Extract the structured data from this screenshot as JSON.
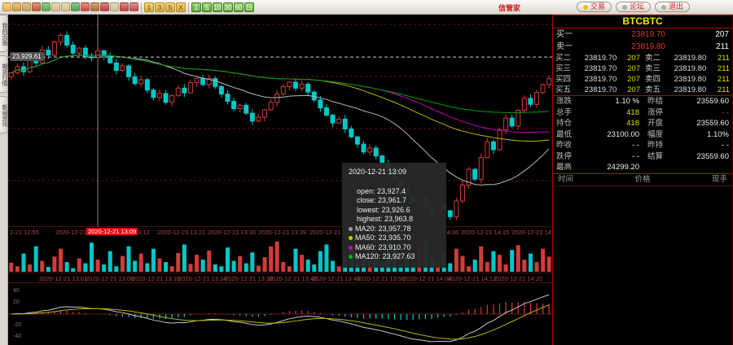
{
  "toolbar": {
    "brand": "信管家",
    "tool_icons": [
      {
        "name": "open-folder-icon",
        "color": "#e9b44a"
      },
      {
        "name": "home-icon",
        "color": "#d89a3e"
      },
      {
        "name": "notebook-icon",
        "color": "#c9a050"
      },
      {
        "name": "wallet-icon",
        "color": "#c05a35"
      },
      {
        "name": "refresh-icon",
        "color": "#5aa84a"
      },
      {
        "name": "zoom-out-icon",
        "color": "#d8c08a"
      },
      {
        "name": "zoom-in-icon",
        "color": "#d8c08a"
      },
      {
        "name": "blocks-icon",
        "color": "#4f9e4f"
      },
      {
        "name": "pencil-icon",
        "color": "#cc4a3a"
      },
      {
        "name": "brush-icon",
        "color": "#b06a30"
      },
      {
        "name": "funnel-icon",
        "color": "#c03a3a"
      },
      {
        "name": "calculator-icon",
        "color": "#cfc39a"
      },
      {
        "name": "trendline-icon",
        "color": "#c43b3b"
      },
      {
        "name": "bar-chart-icon",
        "color": "#c44a4a"
      }
    ],
    "period_yellow": [
      "1",
      "3",
      "5",
      "X"
    ],
    "period_green": [
      "1",
      "5",
      "10",
      "30",
      "60",
      "日"
    ],
    "right_tabs": [
      {
        "label": "交易",
        "icon": "lightning-icon",
        "dot": "#f0c11c"
      },
      {
        "label": "论坛",
        "icon": "chat-icon",
        "dot": "#a8b0a8"
      },
      {
        "label": "退出",
        "icon": "chat-icon",
        "dot": "#a8b0a8"
      }
    ]
  },
  "sidebar": {
    "tabs": [
      "我的页面",
      "期货行情",
      "新闻资讯"
    ]
  },
  "chart": {
    "crosshair_price_label": "23,929.61",
    "tooltip": {
      "datetime": "2020-12-21 13:09",
      "rows": [
        {
          "label": "open",
          "value": "23,927.4"
        },
        {
          "label": "close",
          "value": "23,961.7"
        },
        {
          "label": "lowest",
          "value": "23,926.6"
        },
        {
          "label": "highest",
          "value": "23,963.8"
        }
      ],
      "mas": [
        {
          "label": "MA20",
          "value": "23,957.78",
          "color": "#9a9a9a"
        },
        {
          "label": "MA50",
          "value": "23,935.70",
          "color": "#cccc00"
        },
        {
          "label": "MA60",
          "value": "23,910.70",
          "color": "#cc00cc"
        },
        {
          "label": "MA120",
          "value": "23,927.63",
          "color": "#00bb00"
        }
      ]
    }
  },
  "chart_data": {
    "type": "candlestick",
    "symbol": "BTCBTC",
    "interval_minutes": 1,
    "visible_range": [
      "2020-12-21 12:55",
      "2020-12-21 14:24"
    ],
    "price_axis_range": [
      23080,
      24120
    ],
    "first_open": 23830,
    "closes": [
      23850,
      23880,
      23855,
      23920,
      23900,
      23965,
      23940,
      24005,
      24040,
      23990,
      23950,
      23975,
      23930,
      23927,
      23962,
      23935,
      23900,
      23862,
      23885,
      23830,
      23795,
      23815,
      23762,
      23725,
      23745,
      23700,
      23735,
      23772,
      23748,
      23800,
      23822,
      23790,
      23820,
      23780,
      23742,
      23705,
      23668,
      23685,
      23645,
      23605,
      23625,
      23662,
      23700,
      23742,
      23780,
      23802,
      23772,
      23792,
      23752,
      23712,
      23672,
      23635,
      23595,
      23615,
      23565,
      23525,
      23488,
      23448,
      23468,
      23428,
      23388,
      23348,
      23308,
      23268,
      23228,
      23190,
      23215,
      23168,
      23128,
      23185,
      23150,
      23120,
      23200,
      23280,
      23360,
      23310,
      23420,
      23500,
      23460,
      23560,
      23620,
      23580,
      23660,
      23720,
      23690,
      23750,
      23790,
      23820
    ],
    "volumes": [
      150,
      90,
      300,
      120,
      420,
      180,
      80,
      250,
      380,
      160,
      60,
      220,
      140,
      480,
      200,
      120,
      340,
      90,
      260,
      420,
      180,
      300,
      140,
      380,
      220,
      160,
      90,
      310,
      450,
      130,
      280,
      200,
      350,
      120,
      90,
      400,
      180,
      260,
      140,
      320,
      100,
      240,
      420,
      500,
      160,
      90,
      380,
      280,
      200,
      120,
      340,
      450,
      180,
      90,
      260,
      380,
      140,
      300,
      420,
      200,
      160,
      480,
      350,
      120,
      280,
      90,
      400,
      520,
      240,
      180,
      300,
      140,
      380,
      260,
      90,
      200,
      420,
      160,
      340,
      280,
      120,
      360,
      440,
      200,
      300,
      160,
      380,
      250
    ],
    "volume_axis_max": 550,
    "overlays": [
      {
        "name": "MA20",
        "period": 20,
        "color": "#b8b8b8"
      },
      {
        "name": "MA50",
        "period": 50,
        "color": "#bcbc00"
      },
      {
        "name": "MA60",
        "period": 60,
        "color": "#bc00bc"
      },
      {
        "name": "MA120",
        "period": 120,
        "color": "#00a000"
      }
    ],
    "sub_indicator": {
      "type": "macd",
      "fast": 12,
      "slow": 26,
      "signal": 9,
      "colors": {
        "diff": "#c8c8c8",
        "dea": "#b8b800",
        "hist_pos": "#d23b3b",
        "hist_neg": "#00c8c8"
      }
    },
    "crosshair": {
      "index": 14,
      "price": 23929.61
    },
    "axis1_labels": [
      {
        "text": "2-21 12:55"
      },
      {
        "text": "2020-12-21 13:"
      },
      {
        "text": "2020-12-21 13:09",
        "highlight": true
      },
      {
        "text": "13:12"
      },
      {
        "text": "2020-12-21 13:21"
      },
      {
        "text": "2020-12-21 13:30"
      },
      {
        "text": "2020-12-21 13:39"
      },
      {
        "text": "2020-12-21 13:48"
      },
      {
        "text": "2020-12-21 14:06"
      },
      {
        "text": "2020-12-21 14:15"
      },
      {
        "text": "2020-12-21 14:24"
      }
    ],
    "axis2_labels": [
      "2020-12-21 13:01",
      "2020-12-21 13:08",
      "2020-12-21 13:16",
      "2020-12-21 13:24",
      "2020-12-21 13:32",
      "2020-12-21 13:40",
      "2020-12-21 13:48",
      "2020-12-21 13:56",
      "2020-12-21 14:04",
      "2020-12-21 14:12",
      "2020-12-21 14:20"
    ],
    "macd_axis_labels": [
      "40",
      "20",
      "-20",
      "-40"
    ],
    "colors": {
      "up": "#d23b3b",
      "down": "#00c8c8",
      "grid": "#5c1414",
      "axis_text": "#b04545",
      "crosshair": "#888888"
    }
  },
  "quote_panel": {
    "symbol": "BTCBTC",
    "bid1": {
      "label": "买一",
      "price": "23819.70",
      "qty": "207"
    },
    "ask1": {
      "label": "卖一",
      "price": "23819.80",
      "qty": "211"
    },
    "depth": [
      {
        "bl": "买二",
        "bp": "23819.70",
        "bq": "207",
        "al": "卖二",
        "ap": "23819.80",
        "aq": "211"
      },
      {
        "bl": "买三",
        "bp": "23819.70",
        "bq": "207",
        "al": "卖三",
        "ap": "23819.80",
        "aq": "211"
      },
      {
        "bl": "买四",
        "bp": "23819.70",
        "bq": "207",
        "al": "卖四",
        "ap": "23819.80",
        "aq": "211"
      },
      {
        "bl": "买五",
        "bp": "23819.70",
        "bq": "207",
        "al": "卖五",
        "ap": "23819.80",
        "aq": "211"
      }
    ],
    "stats": [
      {
        "l1": "涨跌",
        "v1": "1.10 %",
        "c1": "w",
        "l2": "昨结",
        "v2": "23559.60",
        "c2": "w"
      },
      {
        "l1": "总手",
        "v1": "418",
        "c1": "y",
        "l2": "涨停",
        "v2": "- -",
        "c2": "r"
      },
      {
        "l1": "持仓",
        "v1": "418",
        "c1": "y",
        "l2": "开盘",
        "v2": "23559.60",
        "c2": "w"
      },
      {
        "l1": "最低",
        "v1": "23100.00",
        "c1": "w",
        "l2": "幅度",
        "v2": "1.10%",
        "c2": "w"
      },
      {
        "l1": "昨收",
        "v1": "- -",
        "c1": "w",
        "l2": "昨持",
        "v2": "- -",
        "c2": "w"
      },
      {
        "l1": "跌停",
        "v1": "- -",
        "c1": "w",
        "l2": "结算",
        "v2": "23559.60",
        "c2": "w"
      },
      {
        "l1": "最高",
        "v1": "24299.20",
        "c1": "w",
        "l2": "",
        "v2": "",
        "c2": "w"
      }
    ],
    "table_headers": [
      "时间",
      "价格",
      "现手"
    ]
  }
}
